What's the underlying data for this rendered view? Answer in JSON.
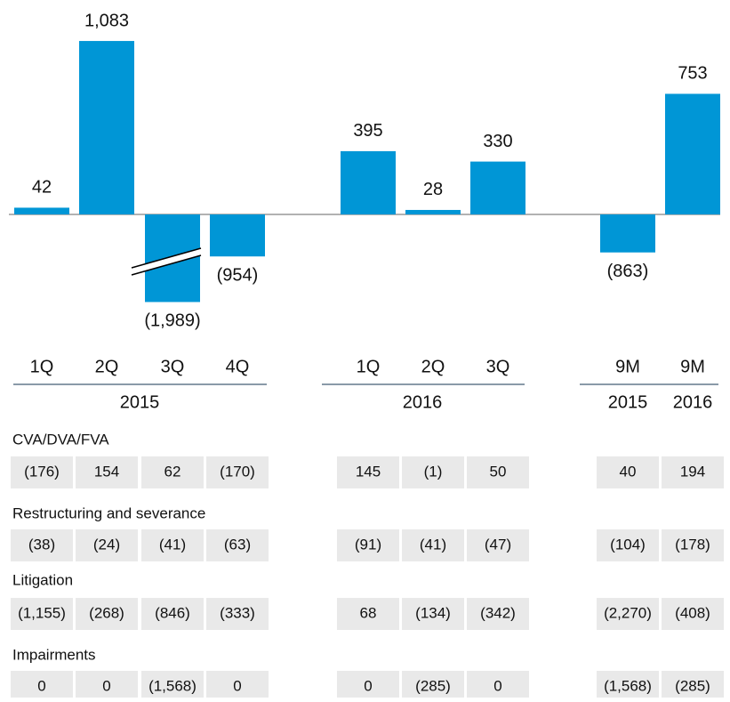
{
  "chart_data": {
    "type": "bar",
    "color": "#0096d6",
    "categories": [
      "1Q",
      "2Q",
      "3Q",
      "4Q",
      "1Q",
      "2Q",
      "3Q",
      "9M",
      "9M"
    ],
    "group_labels": [
      "2015",
      "2016",
      "2015",
      "2016"
    ],
    "values": [
      42,
      1083,
      -1989,
      -954,
      395,
      28,
      330,
      -863,
      753
    ],
    "value_labels": [
      "42",
      "1,083",
      "(1,989)",
      "(954)",
      "395",
      "28",
      "330",
      "(863)",
      "753"
    ]
  },
  "table": {
    "rows": [
      {
        "name": "CVA/DVA/FVA",
        "cells": [
          "(176)",
          "154",
          "62",
          "(170)",
          "145",
          "(1)",
          "50",
          "40",
          "194"
        ]
      },
      {
        "name": "Restructuring and severance",
        "cells": [
          "(38)",
          "(24)",
          "(41)",
          "(63)",
          "(91)",
          "(41)",
          "(47)",
          "(104)",
          "(178)"
        ]
      },
      {
        "name": "Litigation",
        "cells": [
          "(1,155)",
          "(268)",
          "(846)",
          "(333)",
          "68",
          "(134)",
          "(342)",
          "(2,270)",
          "(408)"
        ]
      },
      {
        "name": "Impairments",
        "cells": [
          "0",
          "0",
          "(1,568)",
          "0",
          "0",
          "(285)",
          "0",
          "(1,568)",
          "(285)"
        ]
      }
    ]
  }
}
